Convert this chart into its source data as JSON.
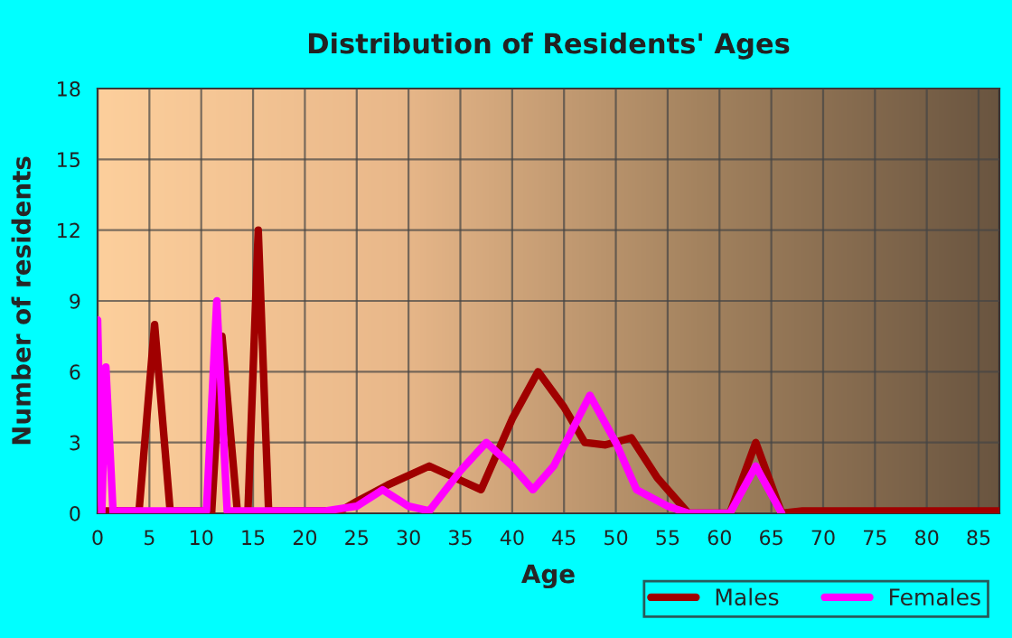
{
  "chart_data": {
    "type": "line",
    "title": "Distribution of Residents' Ages",
    "xlabel": "Age",
    "ylabel": "Number of residents",
    "xlim": [
      0,
      87
    ],
    "xticks": [
      0,
      5,
      10,
      15,
      20,
      25,
      30,
      35,
      40,
      45,
      50,
      55,
      60,
      65,
      70,
      75,
      80,
      85
    ],
    "ylim": [
      0,
      18
    ],
    "yticks": [
      0,
      3,
      6,
      9,
      12,
      15,
      18
    ],
    "grid": true,
    "legend": "bottom right",
    "marker": "none",
    "line_style": "solid",
    "series": [
      {
        "name": "Males",
        "color": "#a00000",
        "x": [
          0,
          4,
          5.5,
          7,
          10,
          11,
          12,
          13.5,
          14.5,
          15.5,
          16.5,
          22,
          23,
          25,
          28,
          32,
          34,
          37,
          40,
          42.5,
          45,
          47,
          49,
          51.5,
          54,
          57,
          61,
          63.5,
          66,
          68,
          87
        ],
        "values": [
          0.1,
          0.1,
          8,
          0.1,
          0.1,
          0,
          7.5,
          0,
          0,
          12,
          0.1,
          0.1,
          0,
          0.5,
          1.2,
          2,
          1.6,
          1,
          4,
          6,
          4.5,
          3,
          2.9,
          3.2,
          1.5,
          0,
          0,
          3,
          0,
          0.1,
          0.1
        ]
      },
      {
        "name": "Females",
        "color": "#ff00ff",
        "x": [
          0,
          0.4,
          0.8,
          1.5,
          2,
          10.5,
          11.5,
          12.5,
          17,
          22,
          25,
          27.5,
          30,
          32,
          35,
          37.5,
          40,
          42,
          44,
          47.5,
          50,
          52,
          55,
          57,
          61,
          63.5,
          66
        ],
        "values": [
          8.2,
          0,
          6.2,
          0,
          0.1,
          0.1,
          9,
          0.1,
          0.1,
          0.1,
          0.3,
          1,
          0.3,
          0.1,
          1.8,
          3,
          2,
          1,
          2,
          5,
          3,
          1,
          0.3,
          0,
          0,
          2,
          0
        ]
      }
    ]
  }
}
